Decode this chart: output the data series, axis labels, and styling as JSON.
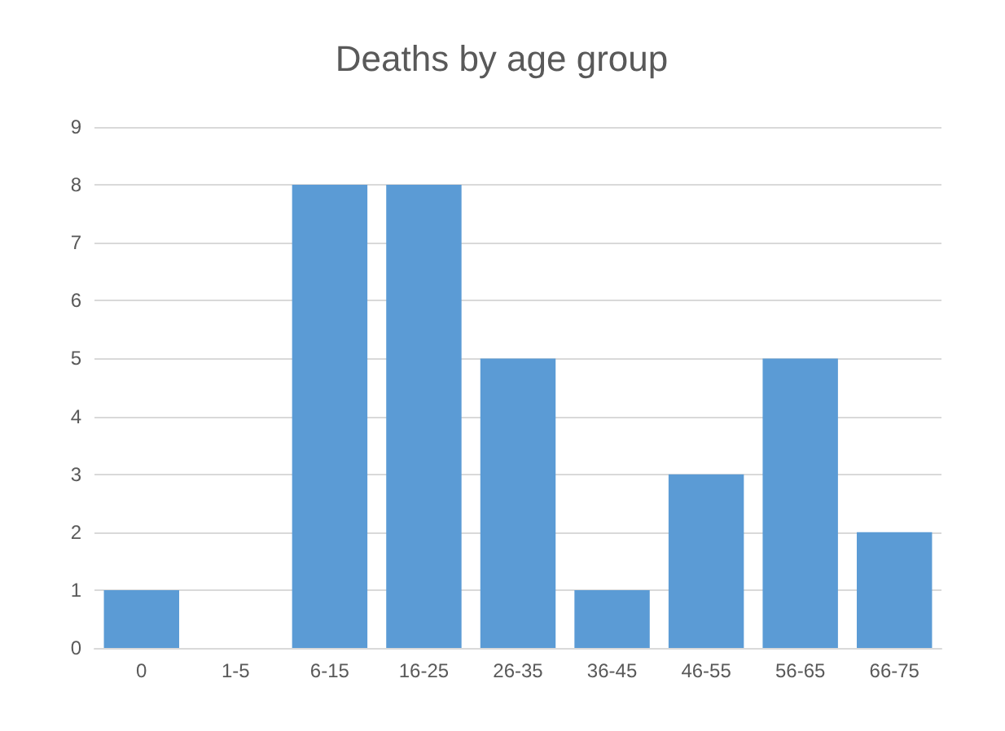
{
  "chart_data": {
    "type": "bar",
    "title": "Deaths by age group",
    "categories": [
      "0",
      "1-5",
      "6-15",
      "16-25",
      "26-35",
      "36-45",
      "46-55",
      "56-65",
      "66-75"
    ],
    "values": [
      1,
      0,
      8,
      8,
      5,
      1,
      3,
      5,
      2
    ],
    "color": "#5b9bd5",
    "ylim": [
      0,
      9
    ],
    "yticks": [
      0,
      1,
      2,
      3,
      4,
      5,
      6,
      7,
      8,
      9
    ],
    "grid": "y"
  }
}
